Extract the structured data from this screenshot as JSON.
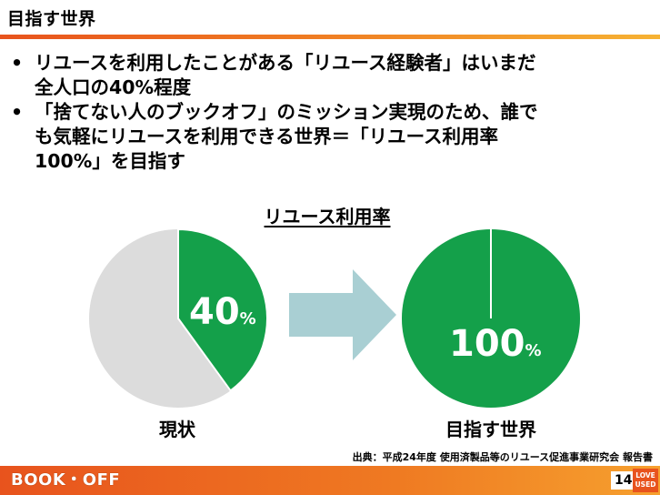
{
  "header": {
    "title": "目指す世界"
  },
  "bullets": [
    {
      "line1": "リユースを利用したことがある「リユース経験者」はいまだ",
      "line2": "全人口の40%程度"
    },
    {
      "line1": "「捨てない人のブックオフ」のミッション実現のため、誰で",
      "line2": "も気軽にリユースを利用できる世界＝「リユース利用率",
      "line3": "100%」を目指す"
    }
  ],
  "chart_data": {
    "type": "pie",
    "title": "リユース利用率",
    "pies": [
      {
        "caption": "現状",
        "value": 40,
        "value_label": "40",
        "unit": "%"
      },
      {
        "caption": "目指す世界",
        "value": 100,
        "value_label": "100",
        "unit": "%"
      }
    ],
    "colors": {
      "used": "#14a04a",
      "remaining": "#dcdcdc",
      "arrow": "#a9cfd3"
    }
  },
  "source": "出典：平成24年度 使用済製品等のリユース促進事業研究会 報告書",
  "footer": {
    "logo": "BOOK・OFF",
    "page": "14",
    "tag_line1": "LOVE",
    "tag_line2": "USED"
  }
}
